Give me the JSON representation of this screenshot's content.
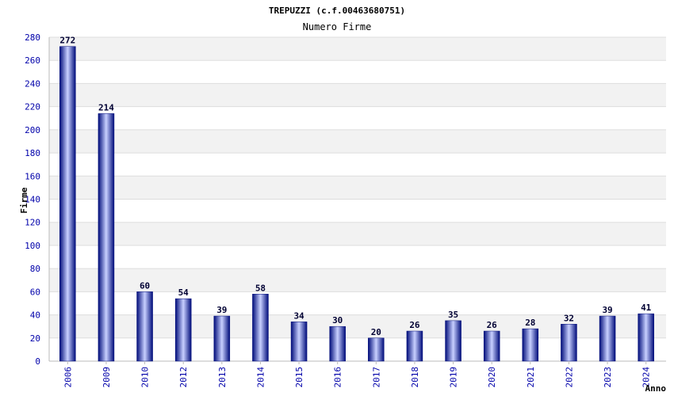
{
  "chart_data": {
    "type": "bar",
    "title": "TREPUZZI (c.f.00463680751)",
    "subtitle": "Numero Firme",
    "xlabel": "Anno",
    "ylabel": "Firme",
    "categories": [
      "2006",
      "2009",
      "2010",
      "2012",
      "2013",
      "2014",
      "2015",
      "2016",
      "2017",
      "2018",
      "2019",
      "2020",
      "2021",
      "2022",
      "2023",
      "2024"
    ],
    "values": [
      272,
      214,
      60,
      54,
      39,
      58,
      34,
      30,
      20,
      26,
      35,
      26,
      28,
      32,
      39,
      41
    ],
    "ylim": [
      0,
      280
    ],
    "yticks": [
      0,
      20,
      40,
      60,
      80,
      100,
      120,
      140,
      160,
      180,
      200,
      220,
      240,
      260,
      280
    ],
    "grid": true,
    "colors": {
      "bar_dark": "#000c7a",
      "bar_light": "#c8d0ff",
      "band": "#f2f2f2",
      "grid": "#dddddd",
      "tick_text": "#0000aa",
      "value_text": "#000033"
    }
  }
}
